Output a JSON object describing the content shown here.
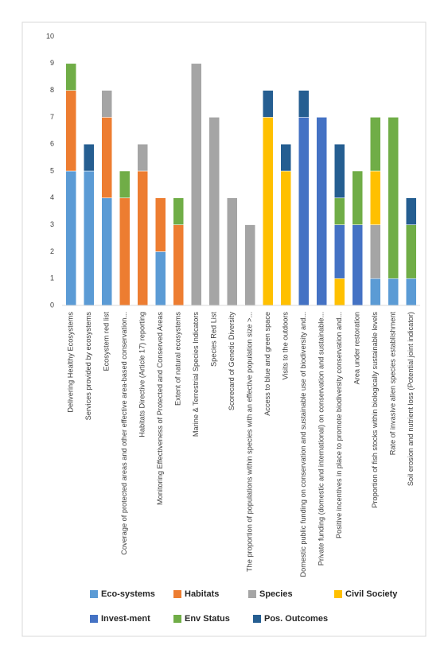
{
  "chart_data": {
    "type": "bar",
    "stacked": true,
    "categories": [
      "Delivering Healthy Ecosystems",
      "Services provided by ecosystems",
      "Ecosystem red list",
      "Coverage of protected areas and other effective area-based conservation...",
      "Habitats Directive (Article 17) reporting",
      "Monitoring Effectiveness of Protected and Conserved Areas",
      "Extent of natural ecosystems",
      "Marine & Terrestrial Species Indicators",
      "Species Red List",
      "Scorecard of Genetic Diversity",
      "The proportion of populations within species with an effective population size >...",
      "Access to blue and green space",
      "Visits to the outdoors",
      "Domestic public funding on conservation and sustainable use of biodiversity and...",
      "Private funding (domestic and international) on conservation and sustainable...",
      "Positive incentives in place to promote biodiversity conservation and...",
      "Area under restoration",
      "Proportion of fish stocks within biologically sustainable levels",
      "Rate of invasive alien species establishment",
      "Soil erosion and nutrient loss (Potential joint indicator)"
    ],
    "series": [
      {
        "name": "Eco-systems",
        "color": "#5b9bd5",
        "values": [
          5,
          5,
          4,
          0,
          0,
          2,
          0,
          0,
          0,
          0,
          0,
          0,
          0,
          0,
          0,
          0,
          0,
          1,
          1,
          1
        ]
      },
      {
        "name": "Habitats",
        "color": "#ed7d31",
        "values": [
          3,
          0,
          3,
          4,
          5,
          2,
          3,
          0,
          0,
          0,
          0,
          0,
          0,
          0,
          0,
          0,
          0,
          0,
          0,
          0
        ]
      },
      {
        "name": "Species",
        "color": "#a5a5a5",
        "values": [
          0,
          0,
          1,
          0,
          1,
          0,
          0,
          9,
          7,
          4,
          3,
          0,
          0,
          0,
          0,
          0,
          0,
          2,
          0,
          0
        ]
      },
      {
        "name": "Civil Society",
        "color": "#ffc000",
        "values": [
          0,
          0,
          0,
          0,
          0,
          0,
          0,
          0,
          0,
          0,
          0,
          7,
          5,
          0,
          0,
          1,
          0,
          2,
          0,
          0
        ]
      },
      {
        "name": "Invest-ment",
        "color": "#4472c4",
        "values": [
          0,
          0,
          0,
          0,
          0,
          0,
          0,
          0,
          0,
          0,
          0,
          0,
          0,
          7,
          7,
          2,
          3,
          0,
          0,
          0
        ]
      },
      {
        "name": "Env Status",
        "color": "#70ad47",
        "values": [
          1,
          0,
          0,
          1,
          0,
          0,
          1,
          0,
          0,
          0,
          0,
          0,
          0,
          0,
          0,
          1,
          2,
          2,
          6,
          2
        ]
      },
      {
        "name": "Pos. Outcomes",
        "color": "#255e91",
        "values": [
          0,
          1,
          0,
          0,
          0,
          0,
          0,
          0,
          0,
          0,
          0,
          1,
          1,
          1,
          0,
          2,
          0,
          0,
          0,
          1
        ]
      }
    ],
    "ylim": [
      0,
      10
    ],
    "yticks": [
      0,
      1,
      2,
      3,
      4,
      5,
      6,
      7,
      8,
      9,
      10
    ],
    "grid": false,
    "legend": "bottom"
  }
}
